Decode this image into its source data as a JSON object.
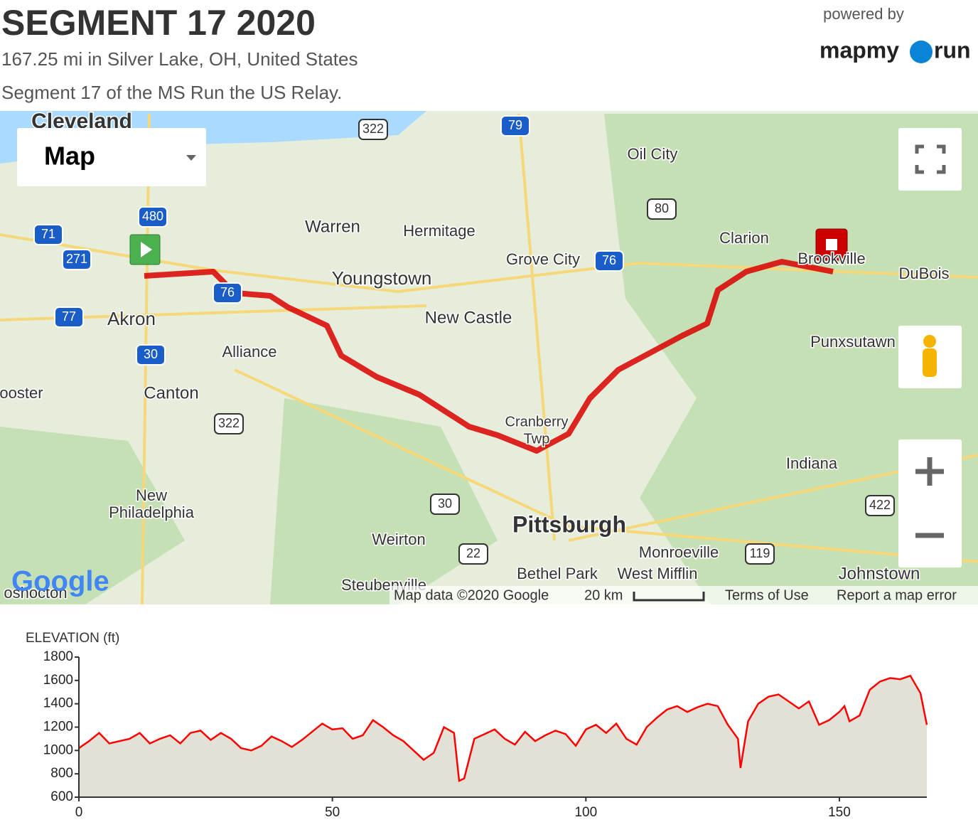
{
  "header": {
    "title": "SEGMENT 17 2020",
    "subtitle": "167.25 mi in Silver Lake, OH, United States",
    "description": "Segment 17 of the MS Run the US Relay.",
    "powered_by": "powered by",
    "brand_left": "mapmy",
    "brand_right": "run"
  },
  "map": {
    "type_control": "Map",
    "labels": [
      "Cleveland",
      "Warren",
      "Hermitage",
      "Youngstown",
      "New Castle",
      "Grove City",
      "Oil City",
      "Clarion",
      "Brookville",
      "DuBois",
      "Punxsutawn",
      "Akron",
      "Alliance",
      "Canton",
      "ooster",
      "Cranberry",
      "Twp",
      "Indiana",
      "New",
      "Philadelphia",
      "Weirton",
      "Pittsburgh",
      "Monroeville",
      "Bethel Park",
      "West Mifflin",
      "Johnstown",
      "Steubenville",
      "oshocton"
    ],
    "shields": [
      "322",
      "79",
      "480",
      "71",
      "271",
      "76",
      "77",
      "30",
      "322",
      "80",
      "76",
      "30",
      "22",
      "119",
      "422"
    ],
    "logo": "Google",
    "attribution": "Map data ©2020 Google",
    "scale": "20 km",
    "terms": "Terms of Use",
    "report": "Report a map error"
  },
  "chart_data": {
    "type": "area",
    "title": "ELEVATION (ft)",
    "color": "#ff0000",
    "fill": "#e3e1d6",
    "x": [
      0,
      2,
      4,
      6,
      8,
      10,
      12,
      14,
      16,
      18,
      20,
      22,
      24,
      26,
      28,
      30,
      32,
      34,
      36,
      38,
      40,
      42,
      44,
      46,
      48,
      50,
      52,
      54,
      56,
      58,
      60,
      62,
      64,
      66,
      68,
      70,
      72,
      74,
      75,
      76,
      78,
      80,
      82,
      84,
      86,
      88,
      90,
      92,
      94,
      96,
      98,
      100,
      102,
      104,
      106,
      108,
      110,
      112,
      114,
      116,
      118,
      120,
      122,
      124,
      126,
      128,
      130,
      130.5,
      132,
      134,
      136,
      138,
      140,
      142,
      144,
      146,
      148,
      150,
      151,
      152,
      154,
      156,
      158,
      160,
      162,
      164,
      166,
      167.25
    ],
    "values": [
      1020,
      1080,
      1150,
      1060,
      1080,
      1100,
      1150,
      1060,
      1100,
      1130,
      1060,
      1150,
      1170,
      1090,
      1150,
      1100,
      1020,
      1000,
      1040,
      1120,
      1080,
      1030,
      1090,
      1160,
      1230,
      1180,
      1190,
      1100,
      1130,
      1260,
      1200,
      1130,
      1080,
      1000,
      920,
      980,
      1200,
      1150,
      740,
      760,
      1100,
      1140,
      1180,
      1100,
      1050,
      1160,
      1080,
      1130,
      1170,
      1140,
      1040,
      1180,
      1220,
      1150,
      1230,
      1100,
      1050,
      1200,
      1280,
      1350,
      1380,
      1330,
      1370,
      1400,
      1380,
      1220,
      1100,
      850,
      1250,
      1400,
      1460,
      1480,
      1420,
      1360,
      1420,
      1220,
      1260,
      1330,
      1380,
      1250,
      1300,
      1520,
      1590,
      1620,
      1610,
      1640,
      1490,
      1220
    ],
    "xlim": [
      0,
      167.25
    ],
    "xticks": [
      0,
      50,
      100,
      150
    ],
    "ylim": [
      600,
      1800
    ],
    "yticks": [
      600,
      800,
      1000,
      1200,
      1400,
      1600,
      1800
    ]
  }
}
